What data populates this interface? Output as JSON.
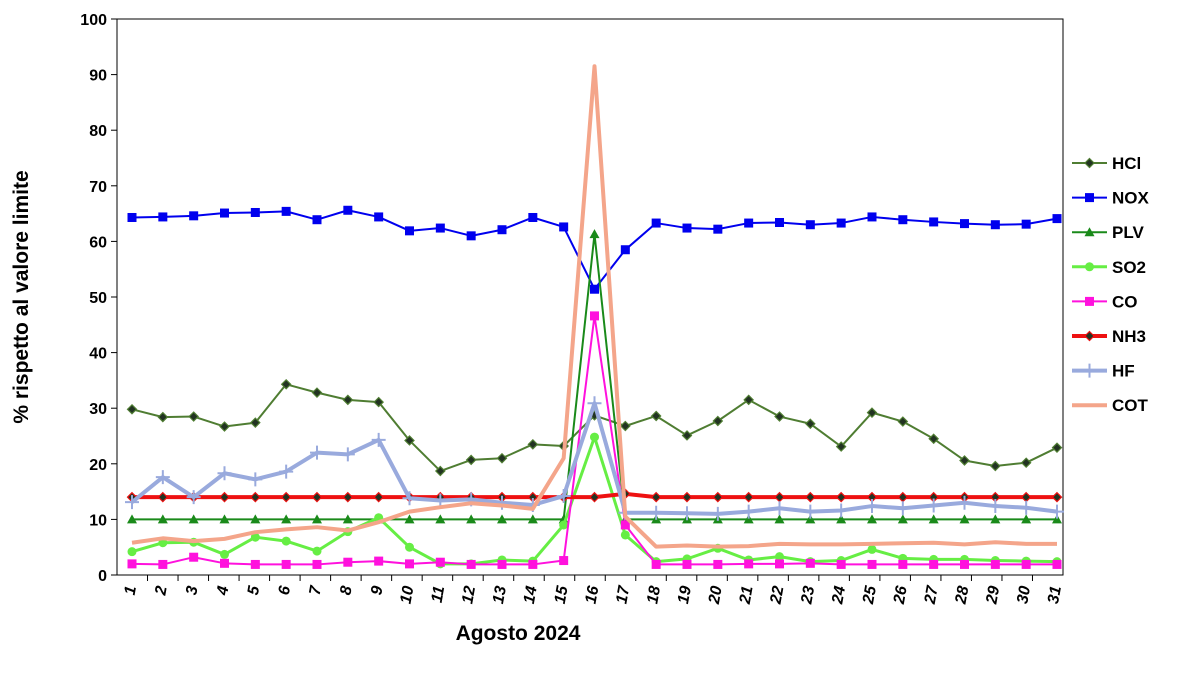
{
  "chart_data": {
    "type": "line",
    "xlabel": "Agosto 2024",
    "ylabel": "% rispetto al valore limite",
    "ylim": [
      0,
      100
    ],
    "yticks": [
      0,
      10,
      20,
      30,
      40,
      50,
      60,
      70,
      80,
      90,
      100
    ],
    "x": [
      "1",
      "2",
      "3",
      "4",
      "5",
      "6",
      "7",
      "8",
      "9",
      "10",
      "11",
      "12",
      "13",
      "14",
      "15",
      "16",
      "17",
      "18",
      "19",
      "20",
      "21",
      "22",
      "23",
      "24",
      "25",
      "26",
      "27",
      "28",
      "29",
      "30",
      "31"
    ],
    "legend_position": "right",
    "grid": false,
    "series": [
      {
        "name": "HCl",
        "color": "#4f7d32",
        "marker": "diamond",
        "line_width": 2,
        "values": [
          29.8,
          28.4,
          28.5,
          26.7,
          27.4,
          34.3,
          32.8,
          31.5,
          31.1,
          24.2,
          18.7,
          20.7,
          21.0,
          23.5,
          23.2,
          28.7,
          26.8,
          28.6,
          25.1,
          27.7,
          31.5,
          28.5,
          27.2,
          23.1,
          29.2,
          27.6,
          24.5,
          20.6,
          19.6,
          20.2,
          22.9
        ]
      },
      {
        "name": "NOX",
        "color": "#0000ee",
        "marker": "square",
        "line_width": 2,
        "values": [
          64.3,
          64.4,
          64.6,
          65.1,
          65.2,
          65.4,
          63.9,
          65.6,
          64.4,
          61.9,
          62.4,
          61.0,
          62.1,
          64.3,
          62.6,
          51.4,
          58.5,
          63.3,
          62.4,
          62.2,
          63.3,
          63.4,
          63.0,
          63.3,
          64.4,
          63.9,
          63.5,
          63.2,
          63.0,
          63.1,
          64.1
        ]
      },
      {
        "name": "PLV",
        "color": "#1a8a1a",
        "marker": "triangle",
        "line_width": 2,
        "values": [
          10,
          10,
          10,
          10,
          10,
          10,
          10,
          10,
          10,
          10,
          10,
          10,
          10,
          10,
          10,
          61.3,
          10,
          10,
          10,
          10,
          10,
          10,
          10,
          10,
          10,
          10,
          10,
          10,
          10,
          10,
          10
        ]
      },
      {
        "name": "SO2",
        "color": "#66ee44",
        "marker": "circle",
        "line_width": 3,
        "values": [
          4.2,
          5.8,
          5.9,
          3.7,
          6.8,
          6.1,
          4.3,
          7.8,
          10.3,
          5.0,
          2.0,
          2.0,
          2.7,
          2.5,
          9.0,
          24.8,
          7.2,
          2.4,
          2.9,
          4.8,
          2.7,
          3.3,
          2.4,
          2.6,
          4.6,
          3.0,
          2.8,
          2.8,
          2.6,
          2.5,
          2.4
        ]
      },
      {
        "name": "CO",
        "color": "#ff11dd",
        "marker": "square",
        "line_width": 2,
        "values": [
          2.0,
          1.9,
          3.2,
          2.1,
          1.9,
          1.9,
          1.9,
          2.3,
          2.5,
          2.0,
          2.3,
          1.9,
          1.9,
          1.9,
          2.6,
          46.6,
          9.0,
          1.9,
          1.9,
          1.9,
          2.0,
          2.0,
          2.1,
          1.9,
          1.9,
          1.9,
          1.9,
          1.9,
          1.9,
          1.9,
          1.9
        ]
      },
      {
        "name": "NH3",
        "color": "#ee1111",
        "marker": "diamond",
        "line_width": 4,
        "values": [
          14,
          14,
          14,
          14,
          14,
          14,
          14,
          14,
          14,
          14,
          14,
          14,
          14,
          14,
          14,
          14,
          14.6,
          14,
          14,
          14,
          14,
          14,
          14,
          14,
          14,
          14,
          14,
          14,
          14,
          14,
          14
        ]
      },
      {
        "name": "HF",
        "color": "#99aadd",
        "marker": "plus",
        "line_width": 4,
        "values": [
          13.1,
          17.6,
          14.0,
          18.3,
          17.2,
          18.6,
          22.0,
          21.7,
          24.3,
          13.8,
          13.4,
          13.6,
          13.0,
          12.6,
          14.2,
          30.9,
          11.2,
          11.2,
          11.1,
          11.0,
          11.4,
          12.0,
          11.4,
          11.6,
          12.4,
          12.0,
          12.5,
          13.0,
          12.4,
          12.1,
          11.4
        ]
      },
      {
        "name": "COT",
        "color": "#f4a58a",
        "marker": "none",
        "line_width": 4,
        "values": [
          5.8,
          6.6,
          6.1,
          6.5,
          7.7,
          8.2,
          8.6,
          8.0,
          9.5,
          11.4,
          12.2,
          12.9,
          12.5,
          11.9,
          21.0,
          91.5,
          10.5,
          5.1,
          5.3,
          5.1,
          5.2,
          5.6,
          5.5,
          5.5,
          5.6,
          5.7,
          5.8,
          5.5,
          5.9,
          5.6,
          5.6
        ]
      }
    ]
  }
}
